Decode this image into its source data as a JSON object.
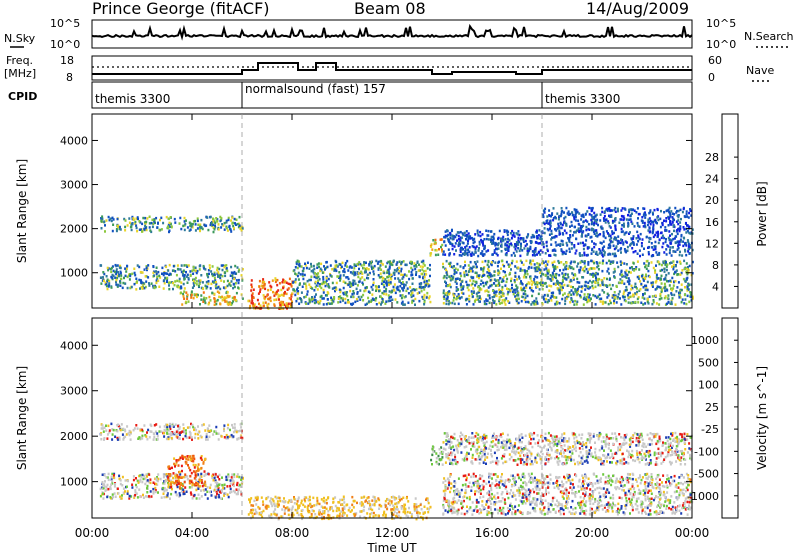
{
  "header": {
    "station": "Prince George (fitACF)",
    "beam": "Beam 08",
    "date": "14/Aug/2009"
  },
  "noise_panel": {
    "left_label": "N.Sky",
    "right_label": "N.Search",
    "left_ticks": [
      "10^5",
      "10^0"
    ],
    "right_ticks": [
      "10^5",
      "10^0"
    ]
  },
  "freq_panel": {
    "left_label_1": "Freq.",
    "left_label_2": "[MHz]",
    "left_ticks": [
      "18",
      "8"
    ],
    "right_label": "Nave",
    "right_ticks": [
      "60",
      "0"
    ]
  },
  "cpid": {
    "label": "CPID",
    "segments": [
      {
        "text": "themis 3300"
      },
      {
        "text": "normalsound (fast) 157"
      },
      {
        "text": "themis 3300"
      }
    ]
  },
  "chart_data": [
    {
      "type": "heatmap",
      "quantity": "Power",
      "ylabel": "Slant Range [km]",
      "xlabel": "Time UT",
      "x_ticks": [
        "00:00",
        "04:00",
        "08:00",
        "12:00",
        "16:00",
        "20:00",
        "00:00"
      ],
      "y_ticks": [
        1000,
        2000,
        3000,
        4000
      ],
      "ylim": [
        200,
        4600
      ],
      "colorbar_label": "Power [dB]",
      "colorbar_ticks": [
        4,
        8,
        12,
        16,
        20,
        24,
        28
      ],
      "colorbar_colors": [
        "#1020e0",
        "#1050c0",
        "#2e7a9a",
        "#3c9a5a",
        "#8cc83c",
        "#e8d428",
        "#f0a018",
        "#f07010",
        "#e82814"
      ],
      "scatter_bands": [
        {
          "t0": 0.3,
          "t1": 6.0,
          "r0": 1950,
          "r1": 2300,
          "intensity": "medium"
        },
        {
          "t0": 0.3,
          "t1": 6.0,
          "r0": 650,
          "r1": 1200,
          "intensity": "medium"
        },
        {
          "t0": 3.5,
          "t1": 6.0,
          "r0": 300,
          "r1": 600,
          "intensity": "high"
        },
        {
          "t0": 6.2,
          "t1": 8.0,
          "r0": 200,
          "r1": 900,
          "intensity": "very-high"
        },
        {
          "t0": 8.0,
          "t1": 13.5,
          "r0": 300,
          "r1": 1300,
          "intensity": "medium"
        },
        {
          "t0": 13.5,
          "t1": 14.0,
          "r0": 1400,
          "r1": 1800,
          "intensity": "high"
        },
        {
          "t0": 14.0,
          "t1": 24.0,
          "r0": 1400,
          "r1": 2000,
          "intensity": "low"
        },
        {
          "t0": 14.0,
          "t1": 24.0,
          "r0": 300,
          "r1": 1300,
          "intensity": "medium"
        },
        {
          "t0": 18.0,
          "t1": 24.0,
          "r0": 2000,
          "r1": 2500,
          "intensity": "low"
        }
      ]
    },
    {
      "type": "heatmap",
      "quantity": "Velocity",
      "ylabel": "Slant Range [km]",
      "xlabel": "Time UT",
      "x_ticks": [
        "00:00",
        "04:00",
        "08:00",
        "12:00",
        "16:00",
        "20:00",
        "00:00"
      ],
      "y_ticks": [
        1000,
        2000,
        3000,
        4000
      ],
      "ylim": [
        200,
        4600
      ],
      "colorbar_label": "Velocity [m s^-1]",
      "colorbar_ticks": [
        1000,
        500,
        100,
        25,
        -25,
        -100,
        -500,
        -1000
      ],
      "colorbar_colors": [
        "#1a3cb4",
        "#2a6ab0",
        "#3a8a48",
        "#6cc83c",
        "#c8c8c8",
        "#f0c020",
        "#f08018",
        "#f05010",
        "#e81a12"
      ],
      "scatter_bands": [
        {
          "t0": 0.3,
          "t1": 6.0,
          "r0": 1950,
          "r1": 2300,
          "intensity": "gray"
        },
        {
          "t0": 0.3,
          "t1": 6.0,
          "r0": 650,
          "r1": 1200,
          "intensity": "gray"
        },
        {
          "t0": 3.0,
          "t1": 4.5,
          "r0": 900,
          "r1": 1600,
          "intensity": "orange"
        },
        {
          "t0": 6.2,
          "t1": 13.5,
          "r0": 200,
          "r1": 700,
          "intensity": "yellow"
        },
        {
          "t0": 13.5,
          "t1": 14.0,
          "r0": 1400,
          "r1": 1800,
          "intensity": "green"
        },
        {
          "t0": 14.0,
          "t1": 24.0,
          "r0": 1400,
          "r1": 2100,
          "intensity": "gray"
        },
        {
          "t0": 14.0,
          "t1": 24.0,
          "r0": 300,
          "r1": 1200,
          "intensity": "gray"
        }
      ]
    }
  ]
}
